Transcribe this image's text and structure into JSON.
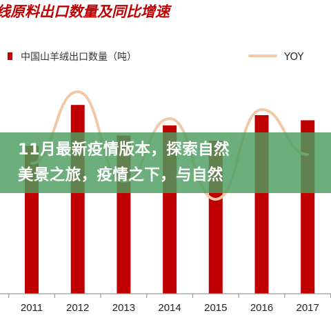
{
  "colors": {
    "bar": "#C00000",
    "yoy_line": "#F2C9A8",
    "axis": "#9A9A9A",
    "title": "#C00000",
    "banner_bg": "#4C9E60"
  },
  "chart_data": {
    "type": "bar",
    "title": "线原料出口数量及同比增速",
    "legend": [
      {
        "name": "中国山羊绒出口数量（吨）",
        "kind": "bar",
        "position": "top-left"
      },
      {
        "name": "YOY",
        "kind": "line",
        "position": "top-right"
      }
    ],
    "categories": [
      "2011",
      "2012",
      "2013",
      "2014",
      "2015",
      "2016",
      "2017"
    ],
    "series": [
      {
        "name": "中国山羊绒出口数量（吨）",
        "type": "bar",
        "values": [
          2.9,
          3.7,
          3.1,
          3.3,
          3.0,
          3.5,
          3.4
        ]
      },
      {
        "name": "YOY",
        "type": "line",
        "values": [
          0.55,
          0.95,
          0.45,
          0.8,
          0.35,
          0.85,
          0.6
        ]
      }
    ],
    "ylim": [
      0,
      4
    ],
    "grid": false
  },
  "banner": {
    "line1": "11月最新疫情版本，探索自然",
    "line2": "美景之旅，疫情之下，与自然"
  }
}
